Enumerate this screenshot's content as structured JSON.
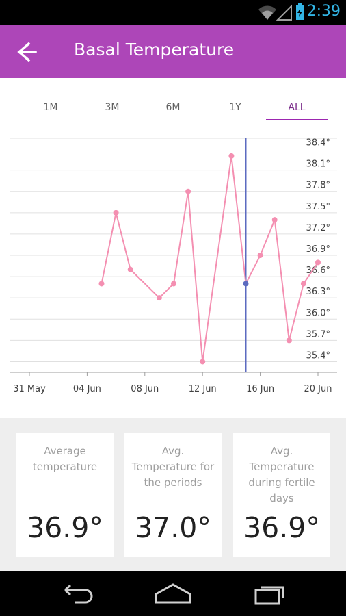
{
  "status_bar": {
    "time": "2:39",
    "icons": [
      "wifi-icon",
      "signal-icon",
      "battery-icon"
    ]
  },
  "app_bar": {
    "title": "Basal Temperature",
    "back_icon": "arrow-left-icon",
    "color": "#ad46b8"
  },
  "tabs": [
    {
      "label": "1M",
      "active": false
    },
    {
      "label": "3M",
      "active": false
    },
    {
      "label": "6M",
      "active": false
    },
    {
      "label": "1Y",
      "active": false
    },
    {
      "label": "ALL",
      "active": true
    }
  ],
  "chart_data": {
    "type": "line",
    "title": "",
    "xlabel": "",
    "ylabel": "",
    "x_ticks": [
      "31 May",
      "04 Jun",
      "08 Jun",
      "12 Jun",
      "16 Jun",
      "20 Jun"
    ],
    "y_ticks": [
      "38.4°",
      "38.1°",
      "37.8°",
      "37.5°",
      "37.2°",
      "36.9°",
      "36.6°",
      "36.3°",
      "36.0°",
      "35.7°",
      "35.4°"
    ],
    "ylim": [
      35.25,
      38.55
    ],
    "grid": true,
    "line_color": "#f48fb1",
    "cursor_color": "#5c6bc0",
    "cursor_x": "15 Jun",
    "series": [
      {
        "x": [
          "05 Jun",
          "06 Jun",
          "07 Jun",
          "09 Jun",
          "10 Jun",
          "11 Jun",
          "12 Jun",
          "14 Jun",
          "15 Jun",
          "16 Jun",
          "17 Jun",
          "18 Jun",
          "19 Jun",
          "20 Jun"
        ],
        "values": [
          36.5,
          37.5,
          36.7,
          36.3,
          36.5,
          37.8,
          35.4,
          38.3,
          36.5,
          36.9,
          37.4,
          35.7,
          36.5,
          36.8
        ]
      }
    ]
  },
  "stats": [
    {
      "label": "Average temperature",
      "value": "36.9°"
    },
    {
      "label": "Avg. Temperature for the periods",
      "value": "37.0°"
    },
    {
      "label": "Avg. Temperature during fertile days",
      "value": "36.9°"
    }
  ],
  "nav_bar": {
    "buttons": [
      "back-nav-icon",
      "home-nav-icon",
      "recent-apps-icon"
    ]
  }
}
